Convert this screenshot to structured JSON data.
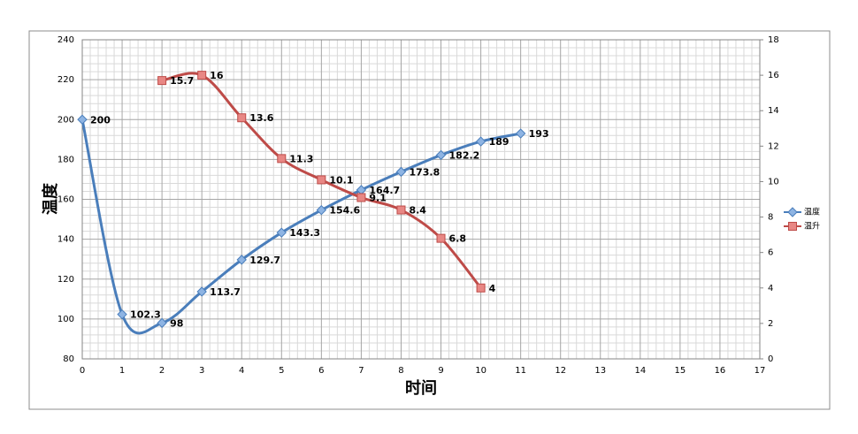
{
  "chart_data": {
    "type": "line",
    "x_label": "时间",
    "y_label": "温度",
    "xlim": [
      0,
      17
    ],
    "xticks": [
      0,
      1,
      2,
      3,
      4,
      5,
      6,
      7,
      8,
      9,
      10,
      11,
      12,
      13,
      14,
      15,
      16,
      17
    ],
    "ylim": [
      80,
      240
    ],
    "yticks": [
      80,
      100,
      120,
      140,
      160,
      180,
      200,
      220,
      240
    ],
    "y2lim": [
      0,
      18
    ],
    "y2ticks": [
      0,
      2,
      4,
      6,
      8,
      10,
      12,
      14,
      16,
      18
    ],
    "grid": true,
    "legend": "right",
    "series": [
      {
        "name": "温度",
        "color": "#4a7ebb",
        "marker": "diamond",
        "x": [
          0,
          1,
          2,
          3,
          4,
          5,
          6,
          7,
          8,
          9,
          10,
          11
        ],
        "values": [
          200,
          102.3,
          98,
          113.7,
          129.7,
          143.3,
          154.6,
          164.7,
          173.8,
          182.2,
          189,
          193
        ]
      },
      {
        "name": "温升",
        "color": "#be4b48",
        "marker": "square",
        "axis": "y2",
        "x": [
          2,
          3,
          4,
          5,
          6,
          7,
          8,
          9,
          10
        ],
        "values": [
          15.7,
          16,
          13.6,
          11.3,
          10.1,
          9.1,
          8.4,
          6.8,
          4
        ]
      }
    ]
  }
}
